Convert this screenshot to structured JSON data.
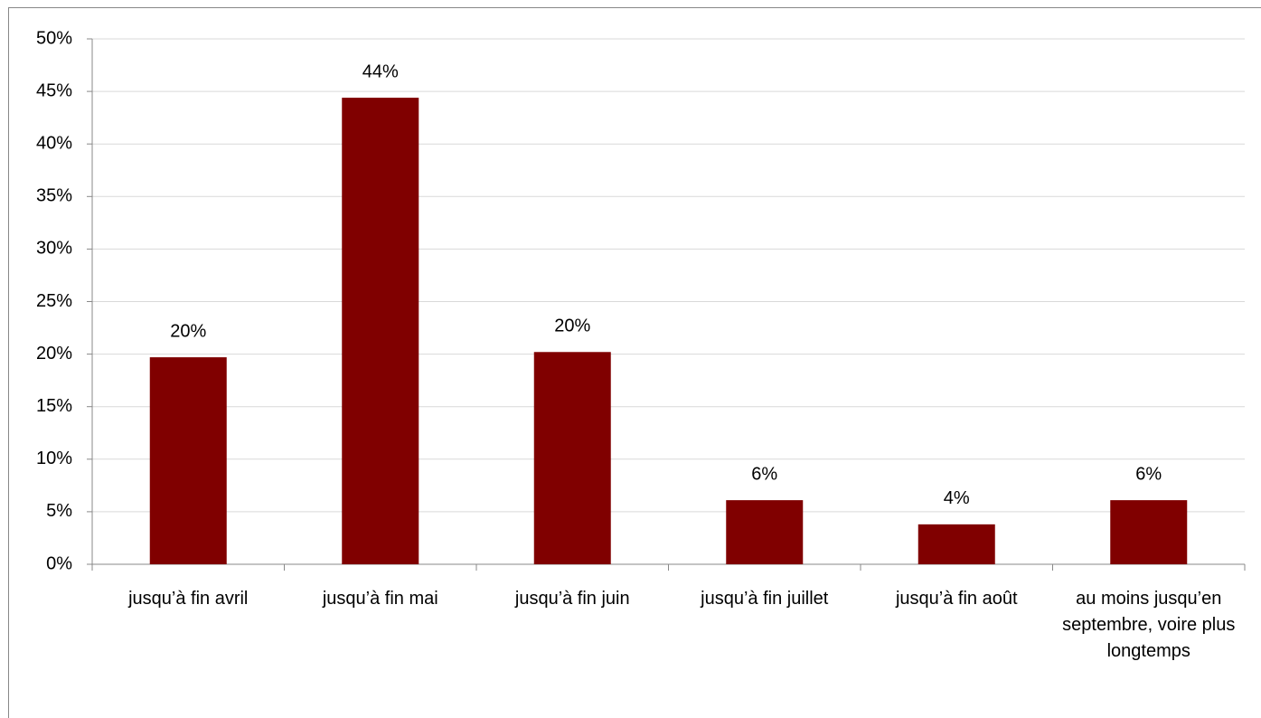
{
  "chart_data": {
    "type": "bar",
    "categories": [
      "jusqu’à fin avril",
      "jusqu’à fin mai",
      "jusqu’à fin juin",
      "jusqu’à fin juillet",
      "jusqu’à fin août",
      "au moins jusqu’en septembre, voire plus longtemps"
    ],
    "values": [
      19.7,
      44.4,
      20.2,
      6.1,
      3.8,
      6.1
    ],
    "value_labels": [
      "20%",
      "44%",
      "20%",
      "6%",
      "4%",
      "6%"
    ],
    "color": "#800000",
    "ylim": [
      0,
      50
    ],
    "yticks": [
      {
        "value": 0,
        "label": "0%"
      },
      {
        "value": 5,
        "label": "5%"
      },
      {
        "value": 10,
        "label": "10%"
      },
      {
        "value": 15,
        "label": "15%"
      },
      {
        "value": 20,
        "label": "20%"
      },
      {
        "value": 25,
        "label": "25%"
      },
      {
        "value": 30,
        "label": "30%"
      },
      {
        "value": 35,
        "label": "35%"
      },
      {
        "value": 40,
        "label": "40%"
      },
      {
        "value": 45,
        "label": "45%"
      },
      {
        "value": 50,
        "label": "50%"
      }
    ],
    "grid": true
  }
}
